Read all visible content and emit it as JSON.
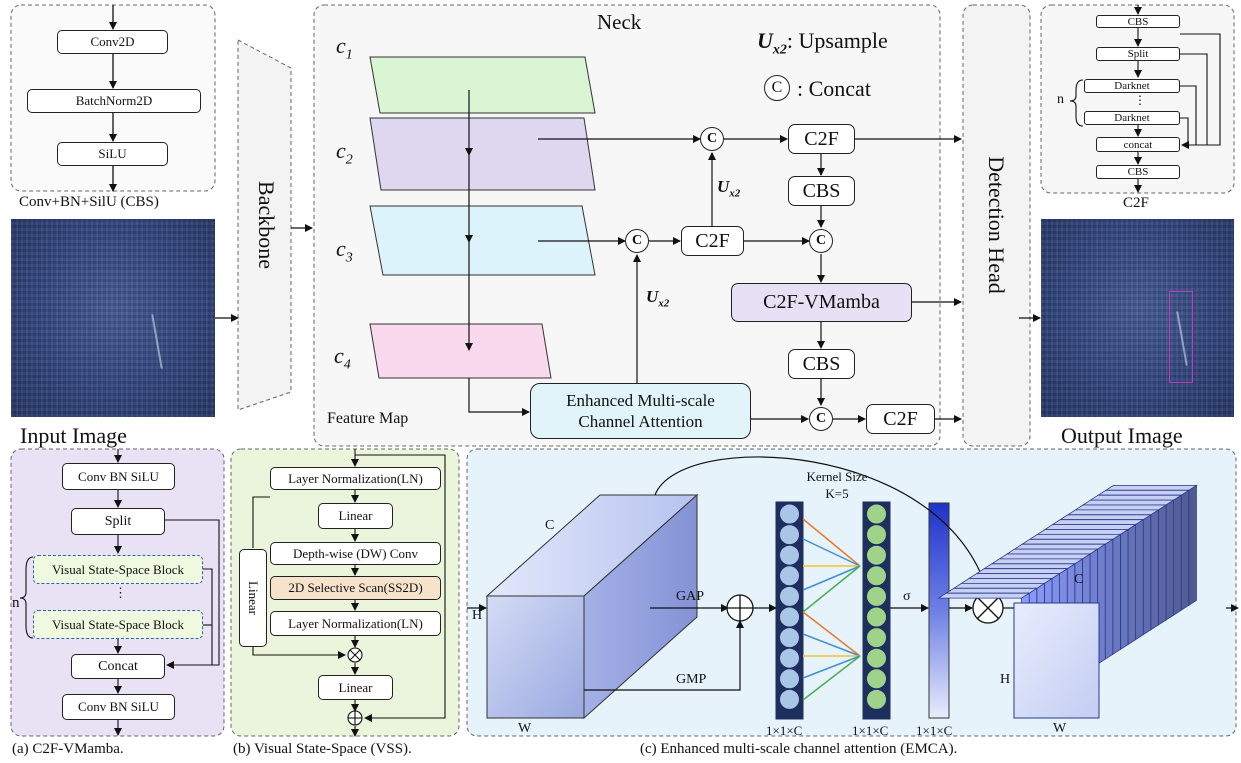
{
  "cbs_panel": {
    "layers": [
      "Conv2D",
      "BatchNorm2D",
      "SiLU"
    ],
    "caption": "Conv+BN+SilU (CBS)"
  },
  "input_image_label": "Input Image",
  "output_image_label": "Output Image",
  "backbone_label": "Backbone",
  "neck": {
    "title": "Neck",
    "legend_upsample_symbol": "U",
    "legend_upsample_sub": "x2",
    "legend_upsample_text": ": Upsample",
    "legend_concat_symbol": "C",
    "legend_concat_text": ": Concat",
    "feature_maps": [
      {
        "name": "c",
        "sub": "1"
      },
      {
        "name": "c",
        "sub": "2"
      },
      {
        "name": "c",
        "sub": "3"
      },
      {
        "name": "c",
        "sub": "4"
      }
    ],
    "feature_map_label": "Feature Map",
    "upsample_sym": "U",
    "upsample_sub": "x2",
    "concat_symbol": "C",
    "c2f_label": "C2F",
    "cbs_label": "CBS",
    "vmamba_label": "C2F-VMamba",
    "emca_line1": "Enhanced Multi-scale",
    "emca_line2": "Channel Attention"
  },
  "detection_head_label": "Detection Head",
  "c2f_panel": {
    "top": "CBS",
    "split": "Split",
    "darknet": "Darknet",
    "dots": "⋮",
    "concat": "concat",
    "bottom": "CBS",
    "n": "n",
    "caption": "C2F"
  },
  "vmamba_panel": {
    "top": "Conv BN SiLU",
    "split": "Split",
    "block": "Visual State-Space Block",
    "dots": "⋮",
    "n": "n",
    "concat": "Concat",
    "bottom": "Conv BN SiLU",
    "caption": "(a) C2F-VMamba."
  },
  "vss_panel": {
    "ln1": "Layer Normalization(LN)",
    "linear1": "Linear",
    "dwconv": "Depth-wise (DW) Conv",
    "ss2d": "2D Selective Scan(SS2D)",
    "ln2": "Layer Normalization(LN)",
    "linear2": "Linear",
    "side_linear": "Linear",
    "caption": "(b) Visual State-Space (VSS)."
  },
  "emca_panel": {
    "c_label": "C",
    "h_label": "H",
    "w_label": "W",
    "gap": "GAP",
    "gmp": "GMP",
    "kernel_line1": "Kernel Size",
    "kernel_line2": "K=5",
    "sigma": "σ",
    "vec1": "1×1×C",
    "vec2": "1×1×C",
    "vec3": "1×1×C",
    "out_c": "C",
    "out_h": "H",
    "out_w": "W",
    "caption": "(c) Enhanced multi-scale channel attention (EMCA)."
  },
  "colors": {
    "plane1": "#d9f5d3",
    "plane2": "#ddd7f0",
    "plane3": "#dcf3fb",
    "plane4": "#fad9ee",
    "vmamba_fill": "#e6e1f5",
    "emca_fill": "#e0f4fa",
    "panel_a_fill": "#e8e2f4",
    "panel_b_fill": "#eaf5dc",
    "panel_c_fill": "#e6f3fb",
    "ss2d_fill": "#f7e3cc",
    "vss_block_fill": "#eef9df",
    "circle_blue": "#a9c6e8",
    "circle_green": "#9fd389"
  }
}
